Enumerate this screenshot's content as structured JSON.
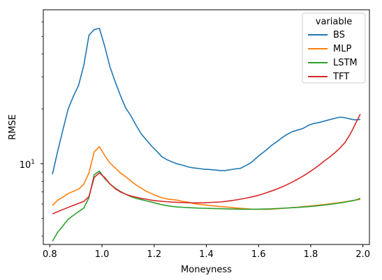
{
  "chart_data": {
    "type": "line",
    "xlabel": "Moneyness",
    "ylabel": "RMSE",
    "xlim": [
      0.775,
      2.025
    ],
    "ylim": [
      3.6,
      70
    ],
    "yscale": "log",
    "x_ticks": [
      0.8,
      1.0,
      1.2,
      1.4,
      1.6,
      1.8,
      2.0
    ],
    "x_tick_labels": [
      "0.8",
      "1.0",
      "1.2",
      "1.4",
      "1.6",
      "1.8",
      "2.0"
    ],
    "y_ticks": [
      10
    ],
    "y_tick_labels": [
      "10^1"
    ],
    "y_tick_base": "10",
    "y_tick_exp": "1",
    "legend": {
      "title": "variable",
      "position": "top-right"
    },
    "x": [
      0.81,
      0.83,
      0.85,
      0.87,
      0.89,
      0.91,
      0.93,
      0.95,
      0.97,
      0.99,
      1.01,
      1.03,
      1.05,
      1.07,
      1.09,
      1.11,
      1.13,
      1.15,
      1.17,
      1.19,
      1.21,
      1.23,
      1.25,
      1.27,
      1.29,
      1.31,
      1.33,
      1.35,
      1.37,
      1.39,
      1.41,
      1.43,
      1.45,
      1.47,
      1.49,
      1.51,
      1.53,
      1.55,
      1.57,
      1.59,
      1.61,
      1.63,
      1.65,
      1.67,
      1.69,
      1.71,
      1.73,
      1.75,
      1.77,
      1.79,
      1.81,
      1.83,
      1.85,
      1.87,
      1.89,
      1.91,
      1.93,
      1.95,
      1.97,
      1.99
    ],
    "series": [
      {
        "name": "BS",
        "color": "#1f77b4",
        "values": [
          8.75,
          11.7,
          15.3,
          19.9,
          23.4,
          26.9,
          34.5,
          50.7,
          54.5,
          55.3,
          44.3,
          34.2,
          28.3,
          23.8,
          20.3,
          18.4,
          16.3,
          14.6,
          13.5,
          12.5,
          11.7,
          10.9,
          10.5,
          10.2,
          9.96,
          9.8,
          9.6,
          9.48,
          9.42,
          9.32,
          9.29,
          9.24,
          9.18,
          9.16,
          9.25,
          9.36,
          9.42,
          9.73,
          10.1,
          10.7,
          11.3,
          11.9,
          12.6,
          13.2,
          13.9,
          14.5,
          15.0,
          15.3,
          15.6,
          16.2,
          16.6,
          16.8,
          17.1,
          17.4,
          17.7,
          18.0,
          17.9,
          17.6,
          17.4,
          17.5
        ]
      },
      {
        "name": "MLP",
        "color": "#ff7f0e",
        "values": [
          5.9,
          6.3,
          6.55,
          6.85,
          7.05,
          7.25,
          7.7,
          8.9,
          11.6,
          12.4,
          11.1,
          10.1,
          9.5,
          8.9,
          8.5,
          8.05,
          7.65,
          7.35,
          7.05,
          6.85,
          6.65,
          6.5,
          6.4,
          6.35,
          6.3,
          6.2,
          6.15,
          6.05,
          5.98,
          5.95,
          5.9,
          5.86,
          5.82,
          5.79,
          5.76,
          5.72,
          5.69,
          5.66,
          5.63,
          5.62,
          5.62,
          5.61,
          5.63,
          5.65,
          5.68,
          5.71,
          5.74,
          5.77,
          5.81,
          5.84,
          5.88,
          5.92,
          5.96,
          6.01,
          6.06,
          6.11,
          6.17,
          6.24,
          6.31,
          6.37
        ]
      },
      {
        "name": "LSTM",
        "color": "#2ca02c",
        "values": [
          3.75,
          4.2,
          4.55,
          4.95,
          5.2,
          5.45,
          5.7,
          6.5,
          8.7,
          9.1,
          8.3,
          7.75,
          7.35,
          7.05,
          6.8,
          6.6,
          6.45,
          6.35,
          6.25,
          6.15,
          6.05,
          5.95,
          5.88,
          5.82,
          5.78,
          5.76,
          5.74,
          5.72,
          5.7,
          5.69,
          5.68,
          5.67,
          5.66,
          5.65,
          5.64,
          5.63,
          5.62,
          5.62,
          5.62,
          5.62,
          5.63,
          5.64,
          5.65,
          5.67,
          5.69,
          5.71,
          5.73,
          5.75,
          5.78,
          5.81,
          5.84,
          5.88,
          5.92,
          5.97,
          6.02,
          6.08,
          6.14,
          6.22,
          6.3,
          6.45
        ]
      },
      {
        "name": "TFT",
        "color": "#d62728",
        "values": [
          5.3,
          5.45,
          5.6,
          5.75,
          5.9,
          6.05,
          6.2,
          6.6,
          8.4,
          8.9,
          8.4,
          7.75,
          7.3,
          7.0,
          6.8,
          6.65,
          6.55,
          6.45,
          6.38,
          6.3,
          6.25,
          6.21,
          6.18,
          6.15,
          6.13,
          6.12,
          6.1,
          6.09,
          6.09,
          6.1,
          6.12,
          6.14,
          6.16,
          6.2,
          6.25,
          6.31,
          6.38,
          6.46,
          6.55,
          6.65,
          6.77,
          6.92,
          7.08,
          7.25,
          7.45,
          7.68,
          7.94,
          8.22,
          8.54,
          8.9,
          9.3,
          9.76,
          10.3,
          10.8,
          11.4,
          12.1,
          13.0,
          14.4,
          16.4,
          18.7
        ]
      }
    ]
  }
}
